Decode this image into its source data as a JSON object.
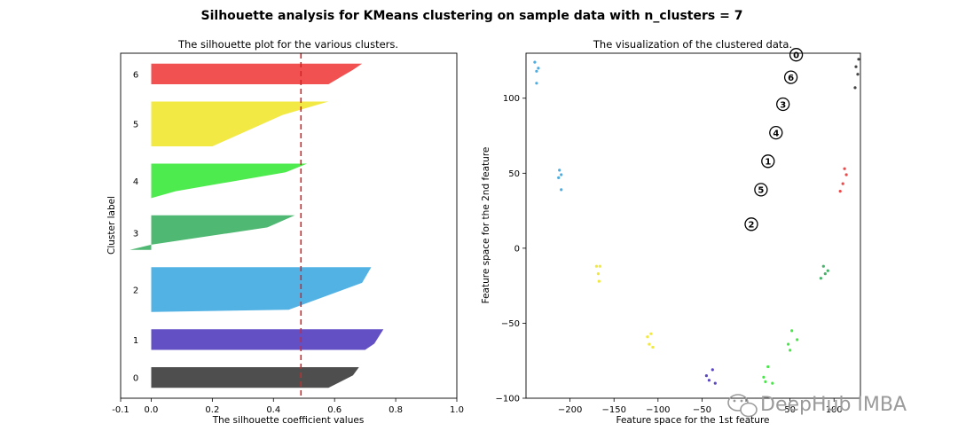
{
  "figure": {
    "suptitle": "Silhouette analysis for KMeans clustering on sample data with n_clusters = 7",
    "watermark": "DeepHub IMBA"
  },
  "chart_data": [
    {
      "type": "area",
      "subtype": "silhouette",
      "title": "The silhouette plot for the various clusters.",
      "xlabel": "The silhouette coefficient values",
      "ylabel": "Cluster label",
      "xlim": [
        -0.1,
        1.0
      ],
      "xticks": [
        -0.1,
        0.0,
        0.2,
        0.4,
        0.6,
        0.8,
        1.0
      ],
      "xtick_labels": [
        "-0.1",
        "0.0",
        "0.2",
        "0.4",
        "0.6",
        "0.8",
        "1.0"
      ],
      "average_silhouette": 0.49,
      "average_line_color": "#d62728",
      "clusters": [
        {
          "label": "0",
          "color": "#444444",
          "size": 1.2,
          "profile": [
            [
              0.0,
              0.68
            ],
            [
              0.4,
              0.66
            ],
            [
              1.0,
              0.58
            ]
          ]
        },
        {
          "label": "1",
          "color": "#5b47c2",
          "size": 1.2,
          "profile": [
            [
              0.0,
              0.76
            ],
            [
              0.7,
              0.73
            ],
            [
              1.0,
              0.7
            ]
          ]
        },
        {
          "label": "2",
          "color": "#4aaee3",
          "size": 2.6,
          "profile": [
            [
              0.0,
              0.72
            ],
            [
              0.35,
              0.69
            ],
            [
              0.95,
              0.45
            ],
            [
              1.0,
              0.0
            ]
          ]
        },
        {
          "label": "3",
          "color": "#46b46a",
          "size": 2.0,
          "profile": [
            [
              0.0,
              0.47
            ],
            [
              0.35,
              0.38
            ],
            [
              0.85,
              0.0
            ],
            [
              1.0,
              -0.07
            ]
          ]
        },
        {
          "label": "4",
          "color": "#44ea44",
          "size": 2.0,
          "profile": [
            [
              0.0,
              0.51
            ],
            [
              0.25,
              0.44
            ],
            [
              0.8,
              0.08
            ],
            [
              1.0,
              0.0
            ]
          ]
        },
        {
          "label": "5",
          "color": "#f2e83a",
          "size": 2.6,
          "profile": [
            [
              0.0,
              0.58
            ],
            [
              0.3,
              0.43
            ],
            [
              1.0,
              0.2
            ]
          ]
        },
        {
          "label": "6",
          "color": "#f04848",
          "size": 1.2,
          "profile": [
            [
              0.0,
              0.69
            ],
            [
              0.3,
              0.66
            ],
            [
              1.0,
              0.58
            ]
          ]
        }
      ]
    },
    {
      "type": "scatter",
      "title": "The visualization of the clustered data.",
      "xlabel": "Feature space for the 1st feature",
      "ylabel": "Feature space for the 2nd feature",
      "xlim": [
        -250,
        130
      ],
      "ylim": [
        -100,
        130
      ],
      "xticks": [
        -200,
        -150,
        -100,
        -50,
        0,
        50,
        100
      ],
      "xtick_labels": [
        "−200",
        "−150",
        "−100",
        "−50",
        "0",
        "50",
        "100"
      ],
      "yticks": [
        -100,
        -50,
        0,
        50,
        100
      ],
      "ytick_labels": [
        "−100",
        "−50",
        "0",
        "50",
        "100"
      ],
      "groups": [
        {
          "color": "#4aaee3",
          "points": [
            [
              -240,
              124
            ],
            [
              -238,
              118
            ],
            [
              -236,
              120
            ],
            [
              -238,
              110
            ],
            [
              -212,
              52
            ],
            [
              -210,
              49
            ],
            [
              -213,
              47
            ],
            [
              -210,
              39
            ]
          ]
        },
        {
          "color": "#f2e83a",
          "points": [
            [
              -170,
              -12
            ],
            [
              -166,
              -12
            ],
            [
              -168,
              -17
            ],
            [
              -167,
              -22
            ],
            [
              -112,
              -59
            ],
            [
              -108,
              -57
            ],
            [
              -110,
              -64
            ],
            [
              -106,
              -66
            ]
          ]
        },
        {
          "color": "#5b47c2",
          "points": [
            [
              -45,
              -85
            ],
            [
              -42,
              -88
            ],
            [
              -38,
              -81
            ],
            [
              -35,
              -90
            ]
          ]
        },
        {
          "color": "#44ea44",
          "points": [
            [
              25,
              -79
            ],
            [
              20,
              -86
            ],
            [
              22,
              -89
            ],
            [
              30,
              -90
            ],
            [
              52,
              -55
            ],
            [
              48,
              -64
            ],
            [
              50,
              -68
            ],
            [
              58,
              -61
            ]
          ]
        },
        {
          "color": "#46b46a",
          "points": [
            [
              88,
              -12
            ],
            [
              90,
              -17
            ],
            [
              85,
              -20
            ],
            [
              93,
              -15
            ]
          ]
        },
        {
          "color": "#f04848",
          "points": [
            [
              112,
              53
            ],
            [
              114,
              49
            ],
            [
              110,
              43
            ],
            [
              107,
              38
            ]
          ]
        },
        {
          "color": "#444444",
          "points": [
            [
              125,
              121
            ],
            [
              128,
              126
            ],
            [
              127,
              116
            ],
            [
              124,
              107
            ]
          ]
        }
      ],
      "centers": [
        {
          "label": "0",
          "x": 57,
          "y": 129
        },
        {
          "label": "6",
          "x": 51,
          "y": 114
        },
        {
          "label": "3",
          "x": 42,
          "y": 96
        },
        {
          "label": "4",
          "x": 34,
          "y": 77
        },
        {
          "label": "1",
          "x": 25,
          "y": 58
        },
        {
          "label": "5",
          "x": 17,
          "y": 39
        },
        {
          "label": "2",
          "x": 6,
          "y": 16
        }
      ]
    }
  ]
}
